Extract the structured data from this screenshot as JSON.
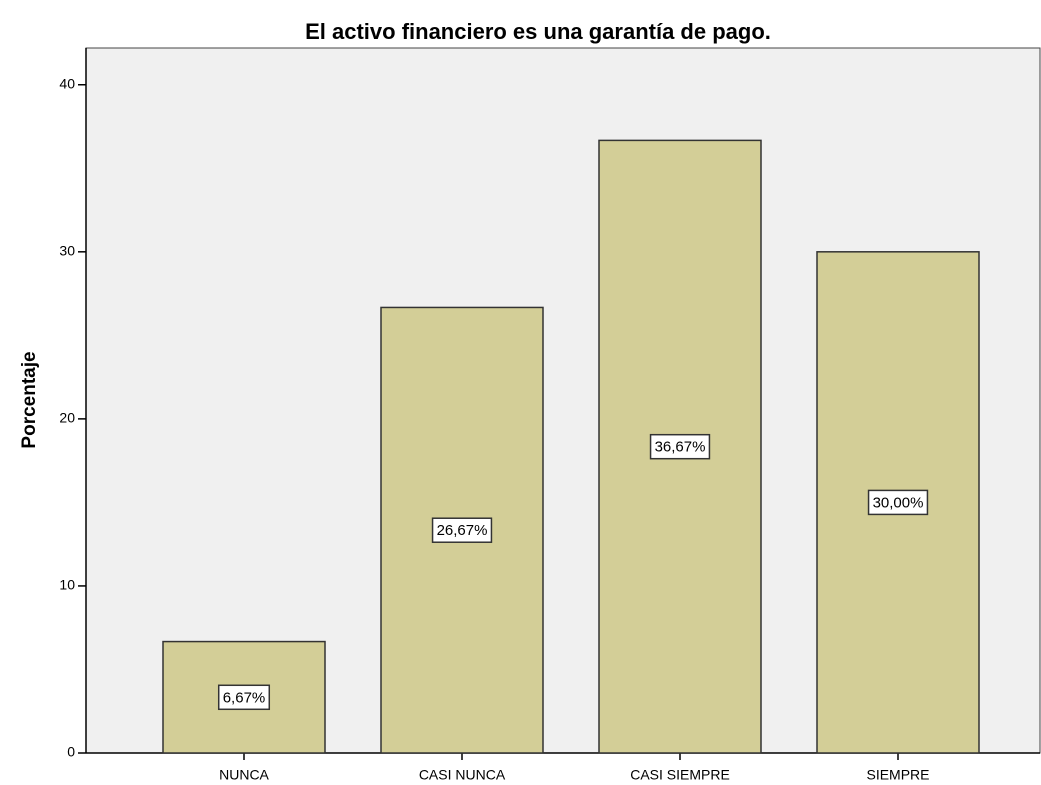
{
  "chart_data": {
    "type": "bar",
    "title": "El activo financiero es una garantía de pago.",
    "y_label": "Porcentaje",
    "categories": [
      "NUNCA",
      "CASI NUNCA",
      "CASI SIEMPRE",
      "SIEMPRE"
    ],
    "values": [
      6.67,
      26.67,
      36.67,
      30.0
    ],
    "value_labels": [
      "6,67%",
      "26,67%",
      "36,67%",
      "30,00%"
    ],
    "color": "#d3ce97",
    "ylim": [
      0,
      42.2
    ],
    "yticks": [
      0,
      10,
      20,
      30,
      40
    ],
    "grid": false
  }
}
